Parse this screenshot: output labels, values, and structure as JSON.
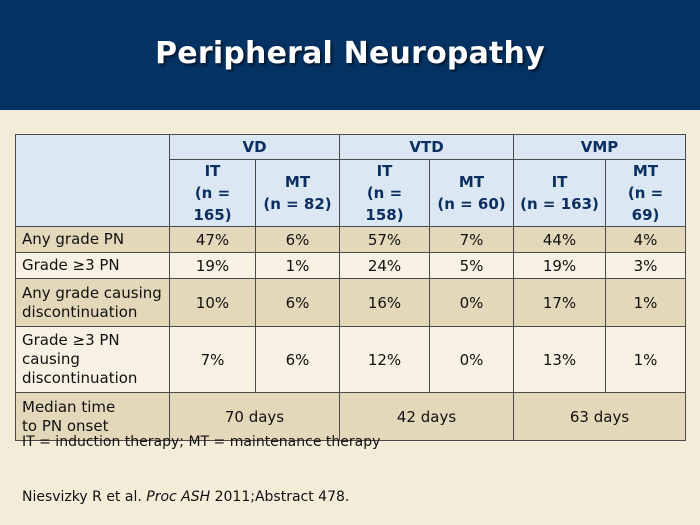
{
  "slide": {
    "title": "Peripheral Neuropathy",
    "groups": [
      "VD",
      "VTD",
      "VMP"
    ],
    "subheaders": [
      {
        "arm": "IT",
        "n": "(n = 165)"
      },
      {
        "arm": "MT",
        "n": "(n = 82)"
      },
      {
        "arm": "IT",
        "n": "(n = 158)"
      },
      {
        "arm": "MT",
        "n": "(n = 60)"
      },
      {
        "arm": "IT",
        "n": "(n = 163)"
      },
      {
        "arm": "MT",
        "n": "(n = 69)"
      }
    ],
    "rows": [
      {
        "label": "Any grade PN",
        "values": [
          "47%",
          "6%",
          "57%",
          "7%",
          "44%",
          "4%"
        ]
      },
      {
        "label": "Grade ≥3 PN",
        "values": [
          "19%",
          "1%",
          "24%",
          "5%",
          "19%",
          "3%"
        ]
      },
      {
        "label_lines": [
          "Any grade causing",
          "discontinuation"
        ],
        "values": [
          "10%",
          "6%",
          "16%",
          "0%",
          "17%",
          "1%"
        ]
      },
      {
        "label_lines": [
          "Grade ≥3 PN",
          "causing",
          "discontinuation"
        ],
        "values": [
          "7%",
          "6%",
          "12%",
          "0%",
          "13%",
          "1%"
        ]
      }
    ],
    "median": {
      "label_lines": [
        "Median time",
        "to PN onset"
      ],
      "values": [
        "70 days",
        "42 days",
        "63 days"
      ]
    },
    "footnote": "IT = induction therapy; MT = maintenance therapy",
    "citation": {
      "authors": "Niesvizky R et al. ",
      "journal": "Proc ASH",
      "rest": " 2011;Abstract 478."
    }
  }
}
